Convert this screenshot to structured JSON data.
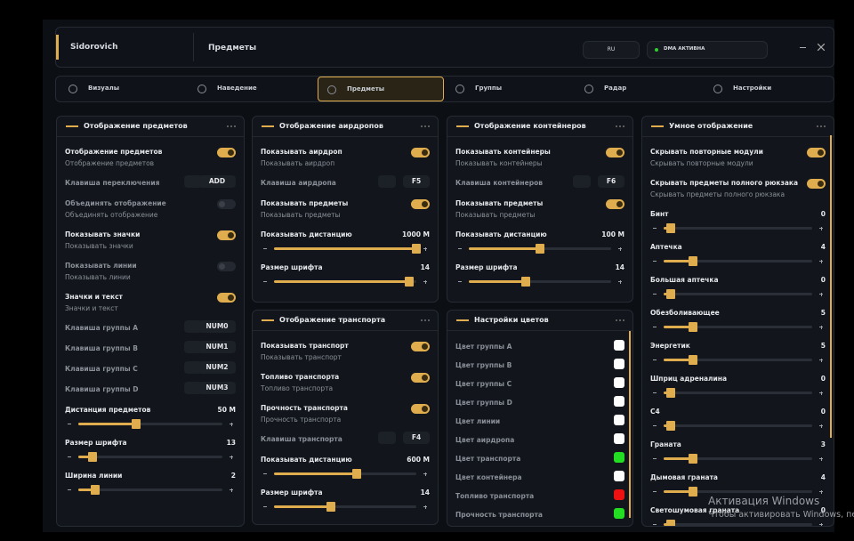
{
  "header": {
    "user": "Sidorovich",
    "title": "Предметы",
    "lang": "RU",
    "status": "DMA АКТИВНА"
  },
  "tabs": [
    "Визуалы",
    "Наведение",
    "Предметы",
    "Группы",
    "Радар",
    "Настройки"
  ],
  "active_tab": 2,
  "panels": [
    {
      "title": "Отображение предметов",
      "rows": [
        {
          "type": "toggle",
          "label": "Отображение предметов",
          "sub": "Отображение предметов",
          "on": true
        },
        {
          "type": "key",
          "label": "Клавиша переключения",
          "key": "ADD"
        },
        {
          "type": "toggle",
          "label": "Объединять отображение",
          "sub": "Объединять отображение",
          "on": false
        },
        {
          "type": "toggle",
          "label": "Показывать значки",
          "sub": "Показывать значки",
          "on": true
        },
        {
          "type": "toggle",
          "label": "Показывать линии",
          "sub": "Показывать линии",
          "on": false
        },
        {
          "type": "toggle",
          "label": "Значки и текст",
          "sub": "Значки и текст",
          "on": true
        },
        {
          "type": "key",
          "label": "Клавиша группы A",
          "key": "NUM0"
        },
        {
          "type": "key",
          "label": "Клавиша группы B",
          "key": "NUM1"
        },
        {
          "type": "key",
          "label": "Клавиша группы C",
          "key": "NUM2"
        },
        {
          "type": "key",
          "label": "Клавиша группы D",
          "key": "NUM3"
        },
        {
          "type": "slider",
          "label": "Дистанция предметов",
          "value": "50 M"
        },
        {
          "type": "slider",
          "label": "Размер шрифта",
          "value": 13
        },
        {
          "type": "slider",
          "label": "Ширина линии",
          "value": 2
        }
      ]
    },
    {
      "title": "Отображение аирдропов",
      "rows": [
        {
          "type": "toggle",
          "label": "Показывать аирдроп",
          "sub": "Показывать аирдроп",
          "on": true
        },
        {
          "type": "key",
          "label": "Клавиша аирдропа",
          "key": "F5"
        },
        {
          "type": "toggle",
          "label": "Показывать предметы",
          "sub": "Показывать предметы",
          "on": true
        },
        {
          "type": "slider",
          "label": "Показывать дистанцию",
          "value": "1000 M"
        },
        {
          "type": "slider",
          "label": "Размер шрифта",
          "value": 14
        }
      ]
    },
    {
      "title": "Отображение контейнеров",
      "rows": [
        {
          "type": "toggle",
          "label": "Показывать контейнеры",
          "sub": "Показывать контейнеры",
          "on": true
        },
        {
          "type": "key",
          "label": "Клавиша контейнеров",
          "key": "F6"
        },
        {
          "type": "toggle",
          "label": "Показывать предметы",
          "sub": "Показывать предметы",
          "on": true
        },
        {
          "type": "slider",
          "label": "Показывать дистанцию",
          "value": "100 M"
        },
        {
          "type": "slider",
          "label": "Размер шрифта",
          "value": 14
        }
      ]
    },
    {
      "title": "Умное отображение",
      "rows": [
        {
          "type": "toggle",
          "label": "Скрывать повторные модули",
          "sub": "Скрывать повторные модули",
          "on": true
        },
        {
          "type": "toggle",
          "label": "Скрывать предметы полного рюкзака",
          "sub": "Скрывать предметы полного рюкзака",
          "on": true
        },
        {
          "type": "slider",
          "label": "Бинт",
          "value": 0
        },
        {
          "type": "slider",
          "label": "Аптечка",
          "value": 4
        },
        {
          "type": "slider",
          "label": "Большая аптечка",
          "value": 0
        },
        {
          "type": "slider",
          "label": "Обезболивающее",
          "value": 5
        },
        {
          "type": "slider",
          "label": "Энергетик",
          "value": 5
        },
        {
          "type": "slider",
          "label": "Шприц адреналина",
          "value": 0
        },
        {
          "type": "slider",
          "label": "C4",
          "value": 0
        },
        {
          "type": "slider",
          "label": "Граната",
          "value": 3
        },
        {
          "type": "slider",
          "label": "Дымовая граната",
          "value": 4
        },
        {
          "type": "slider",
          "label": "Светошумовая граната",
          "value": 0
        }
      ]
    },
    {
      "title": "Отображение транспорта",
      "rows": [
        {
          "type": "toggle",
          "label": "Показывать транспорт",
          "sub": "Показывать транспорт",
          "on": true
        },
        {
          "type": "toggle",
          "label": "Топливо транспорта",
          "sub": "Топливо транспорта",
          "on": true
        },
        {
          "type": "toggle",
          "label": "Прочность транспорта",
          "sub": "Прочность транспорта",
          "on": true
        },
        {
          "type": "key",
          "label": "Клавиша транспорта",
          "key": "F4"
        },
        {
          "type": "slider",
          "label": "Показывать дистанцию",
          "value": "600 M"
        },
        {
          "type": "slider",
          "label": "Размер шрифта",
          "value": 14
        }
      ]
    },
    {
      "title": "Настройки цветов",
      "rows": [
        {
          "type": "color",
          "label": "Цвет группы A",
          "color": "#ffffff"
        },
        {
          "type": "color",
          "label": "Цвет группы B",
          "color": "#ffffff"
        },
        {
          "type": "color",
          "label": "Цвет группы C",
          "color": "#ffffff"
        },
        {
          "type": "color",
          "label": "Цвет группы D",
          "color": "#ffffff"
        },
        {
          "type": "color",
          "label": "Цвет линии",
          "color": "#ffffff"
        },
        {
          "type": "color",
          "label": "Цвет аирдропа",
          "color": "#ffffff"
        },
        {
          "type": "color",
          "label": "Цвет транспорта",
          "color": "#22dd22"
        },
        {
          "type": "color",
          "label": "Цвет контейнера",
          "color": "#ffffff"
        },
        {
          "type": "color",
          "label": "Топливо транспорта",
          "color": "#ee1111"
        },
        {
          "type": "color",
          "label": "Прочность транспорта",
          "color": "#22dd22"
        }
      ]
    }
  ],
  "watermark": {
    "title": "Активация Windows",
    "text": "Чтобы активировать Windows, пере"
  }
}
